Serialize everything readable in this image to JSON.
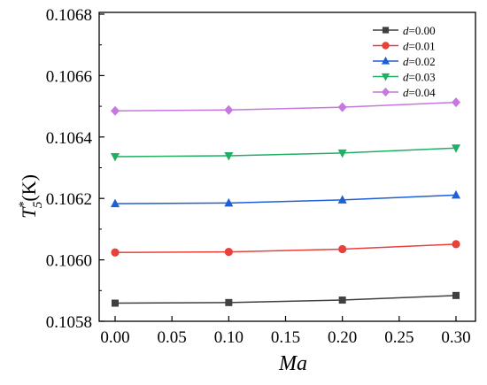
{
  "chart_data": {
    "type": "line",
    "title": "",
    "xlabel": "Ma",
    "ylabel": {
      "base": "T",
      "superscript": "*",
      "subscript": "5",
      "unit": "(K)"
    },
    "x": [
      0.0,
      0.1,
      0.2,
      0.3
    ],
    "xlim": [
      -0.05,
      0.35
    ],
    "ylim": [
      0.1058,
      0.1068
    ],
    "x_ticks": [
      "0.00",
      "0.05",
      "0.10",
      "0.15",
      "0.20",
      "0.25",
      "0.30"
    ],
    "y_ticks": [
      "0.1058",
      "0.1060",
      "0.1062",
      "0.1064",
      "0.1066",
      "0.1068"
    ],
    "grid": false,
    "legend_position": "top-right",
    "series": [
      {
        "name": "d=0.00",
        "var": "d",
        "eq": "=0.00",
        "color": "#404040",
        "marker": "square",
        "values": [
          0.105859,
          0.105861,
          0.105869,
          0.105884
        ]
      },
      {
        "name": "d=0.01",
        "var": "d",
        "eq": "=0.01",
        "color": "#e8413a",
        "marker": "circle",
        "values": [
          0.106024,
          0.106026,
          0.106035,
          0.106051
        ]
      },
      {
        "name": "d=0.02",
        "var": "d",
        "eq": "=0.02",
        "color": "#1f5fd6",
        "marker": "triangle-up",
        "values": [
          0.106183,
          0.106185,
          0.106195,
          0.106211
        ]
      },
      {
        "name": "d=0.03",
        "var": "d",
        "eq": "=0.03",
        "color": "#1fb064",
        "marker": "triangle-down",
        "values": [
          0.106336,
          0.106339,
          0.106348,
          0.106364
        ]
      },
      {
        "name": "d=0.04",
        "var": "d",
        "eq": "=0.04",
        "color": "#c777e0",
        "marker": "diamond",
        "values": [
          0.106485,
          0.106488,
          0.106497,
          0.106513
        ]
      }
    ]
  }
}
